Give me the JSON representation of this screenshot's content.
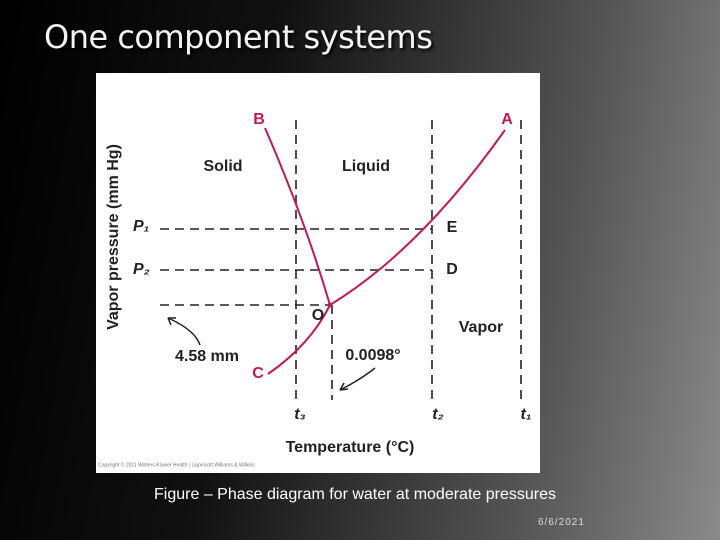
{
  "slide": {
    "title": "One component systems",
    "figure": {
      "y_axis_label": "Vapor pressure (mm Hg)",
      "x_axis_label": "Temperature (°C)",
      "points": {
        "b": "B",
        "a": "A",
        "e": "E",
        "d": "D",
        "o": "O",
        "c": "C"
      },
      "regions": {
        "solid": "Solid",
        "liquid": "Liquid",
        "vapor": "Vapor"
      },
      "pressures": {
        "p1": "P₁",
        "p2": "P₂"
      },
      "temperatures": {
        "t3": "t₃",
        "t2": "t₂",
        "t1": "t₁"
      },
      "annotations": {
        "pressure": "4.58 mm",
        "temperature": "0.0098°"
      },
      "credit": "Copyright © 2011 Wolters Kluwer Health | Lippincott Williams & Wilkins"
    },
    "caption": "Figure – Phase diagram for water at moderate pressures",
    "date": "6/6/2021"
  }
}
